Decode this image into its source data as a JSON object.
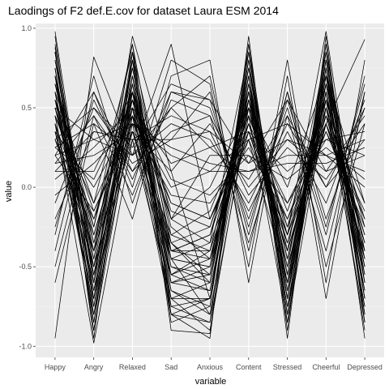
{
  "chart_data": {
    "type": "line",
    "title": "Laodings of F2 def.E.cov for dataset Laura ESM 2014",
    "xlabel": "variable",
    "ylabel": "value",
    "categories": [
      "Happy",
      "Angry",
      "Relaxed",
      "Sad",
      "Anxious",
      "Content",
      "Stressed",
      "Cheerful",
      "Depressed"
    ],
    "ylim": [
      -1.07,
      1.03
    ],
    "yticks": [
      -1.0,
      -0.5,
      0.0,
      0.5,
      1.0
    ],
    "ytick_labels": [
      "-1.0",
      "-0.5",
      "0.0",
      "0.5",
      "1.0"
    ],
    "grid": true,
    "legend": "none",
    "colors": {
      "panel_background": "#ebebeb",
      "grid_major": "#ffffff",
      "grid_minor": "#f5f5f5",
      "line": "#000000"
    },
    "series": [
      {
        "values": [
          0.88,
          -0.95,
          0.85,
          -0.9,
          -0.92,
          0.9,
          -0.95,
          0.95,
          -0.85
        ]
      },
      {
        "values": [
          -0.95,
          0.82,
          0.2,
          0.9,
          -0.2,
          0.3,
          -0.6,
          0.4,
          0.93
        ]
      },
      {
        "values": [
          0.98,
          -0.6,
          0.95,
          0.1,
          -0.7,
          0.6,
          -0.3,
          0.98,
          -0.6
        ]
      },
      {
        "values": [
          0.6,
          -0.85,
          0.6,
          -0.6,
          -0.5,
          0.7,
          -0.8,
          0.8,
          -0.7
        ]
      },
      {
        "values": [
          0.5,
          0.3,
          0.4,
          0.2,
          0.1,
          0.3,
          0.4,
          0.2,
          0.1
        ]
      },
      {
        "values": [
          0.4,
          -0.98,
          0.3,
          -0.7,
          -0.9,
          0.5,
          -0.6,
          0.6,
          -0.9
        ]
      },
      {
        "values": [
          0.7,
          -0.4,
          0.9,
          -0.8,
          -0.95,
          0.95,
          -0.9,
          0.9,
          -0.8
        ]
      },
      {
        "values": [
          0.2,
          0.6,
          0.1,
          0.5,
          0.7,
          -0.4,
          0.6,
          -0.5,
          0.4
        ]
      },
      {
        "values": [
          -0.6,
          0.4,
          -0.2,
          0.7,
          0.8,
          -0.6,
          0.7,
          -0.7,
          0.6
        ]
      },
      {
        "values": [
          0.3,
          -0.2,
          0.5,
          -0.4,
          -0.3,
          0.4,
          -0.3,
          0.5,
          -0.3
        ]
      },
      {
        "values": [
          0.85,
          -0.7,
          0.7,
          -0.5,
          -0.6,
          0.8,
          -0.7,
          0.7,
          -0.5
        ]
      },
      {
        "values": [
          0.1,
          0.1,
          0.6,
          -0.2,
          0.2,
          0.2,
          -0.1,
          0.3,
          0.2
        ]
      },
      {
        "values": [
          0.5,
          -0.5,
          0.8,
          -0.3,
          -0.4,
          0.6,
          -0.5,
          0.8,
          -0.4
        ]
      },
      {
        "values": [
          0.65,
          -0.3,
          0.55,
          -0.1,
          -0.2,
          0.4,
          -0.1,
          0.4,
          -0.2
        ]
      },
      {
        "values": [
          -0.3,
          0.7,
          -0.1,
          0.6,
          0.5,
          -0.2,
          0.5,
          -0.3,
          0.7
        ]
      },
      {
        "values": [
          0.75,
          -0.8,
          0.4,
          -0.8,
          -0.7,
          0.7,
          -0.8,
          0.6,
          -0.75
        ]
      },
      {
        "values": [
          0.35,
          0.0,
          0.45,
          0.0,
          0.1,
          0.1,
          0.2,
          0.2,
          0.0
        ]
      },
      {
        "values": [
          0.55,
          -0.65,
          0.65,
          -0.55,
          -0.65,
          0.55,
          -0.55,
          0.65,
          -0.55
        ]
      },
      {
        "values": [
          0.25,
          0.4,
          0.2,
          0.4,
          0.3,
          -0.1,
          0.4,
          0.0,
          0.3
        ]
      },
      {
        "values": [
          0.8,
          -0.45,
          0.75,
          -0.35,
          -0.55,
          0.75,
          -0.4,
          0.85,
          -0.45
        ]
      },
      {
        "values": [
          -0.1,
          0.5,
          0.15,
          0.3,
          0.6,
          -0.3,
          0.6,
          -0.2,
          0.5
        ]
      },
      {
        "values": [
          0.45,
          -0.75,
          0.5,
          -0.65,
          -0.8,
          0.65,
          -0.75,
          0.55,
          -0.85
        ]
      },
      {
        "values": [
          0.6,
          -0.1,
          0.85,
          -0.2,
          0.0,
          0.5,
          0.0,
          0.7,
          -0.1
        ]
      },
      {
        "values": [
          0.9,
          -0.55,
          0.6,
          -0.45,
          -0.35,
          0.85,
          -0.65,
          0.75,
          -0.6
        ]
      },
      {
        "values": [
          0.15,
          0.2,
          0.35,
          0.1,
          0.4,
          0.0,
          0.3,
          0.1,
          0.2
        ]
      },
      {
        "values": [
          0.7,
          -0.9,
          0.45,
          -0.75,
          -0.85,
          0.45,
          -0.85,
          0.5,
          -0.65
        ]
      },
      {
        "values": [
          -0.4,
          0.6,
          0.0,
          0.8,
          0.65,
          -0.5,
          0.8,
          -0.6,
          0.8
        ]
      },
      {
        "values": [
          0.55,
          -0.35,
          0.7,
          -0.25,
          -0.45,
          0.35,
          -0.35,
          0.45,
          -0.35
        ]
      },
      {
        "values": [
          0.4,
          -0.6,
          0.55,
          -0.5,
          -0.55,
          0.65,
          -0.45,
          0.6,
          -0.5
        ]
      },
      {
        "values": [
          0.3,
          0.5,
          0.25,
          0.65,
          0.55,
          0.15,
          0.55,
          0.1,
          0.45
        ]
      },
      {
        "values": [
          0.85,
          -0.85,
          0.8,
          -0.85,
          -0.75,
          0.8,
          -0.85,
          0.75,
          -0.95
        ]
      },
      {
        "values": [
          0.2,
          -0.15,
          0.4,
          -0.05,
          -0.1,
          0.25,
          -0.2,
          0.35,
          -0.15
        ]
      },
      {
        "values": [
          0.65,
          -0.25,
          0.9,
          -0.4,
          -0.3,
          0.55,
          -0.25,
          0.65,
          -0.25
        ]
      },
      {
        "values": [
          -0.2,
          0.35,
          0.3,
          0.45,
          0.35,
          -0.15,
          0.35,
          -0.1,
          0.55
        ]
      },
      {
        "values": [
          0.5,
          -0.4,
          0.65,
          -0.6,
          -0.65,
          0.6,
          -0.6,
          0.7,
          -0.7
        ]
      },
      {
        "values": [
          0.75,
          -0.65,
          0.35,
          -0.45,
          -0.5,
          0.5,
          -0.5,
          0.4,
          -0.4
        ]
      },
      {
        "values": [
          0.05,
          0.25,
          0.5,
          0.15,
          0.25,
          0.35,
          0.1,
          0.3,
          0.35
        ]
      },
      {
        "values": [
          0.45,
          -0.2,
          0.6,
          -0.15,
          -0.25,
          0.45,
          -0.15,
          0.55,
          -0.2
        ]
      },
      {
        "values": [
          0.35,
          -0.5,
          0.3,
          -0.55,
          -0.45,
          0.4,
          -0.4,
          0.45,
          -0.45
        ]
      },
      {
        "values": [
          0.95,
          -0.75,
          0.7,
          -0.65,
          -0.75,
          0.9,
          -0.7,
          0.9,
          -0.7
        ]
      },
      {
        "values": [
          -0.5,
          0.45,
          -0.05,
          0.55,
          0.45,
          -0.35,
          0.45,
          -0.4,
          0.6
        ]
      },
      {
        "values": [
          0.6,
          -0.55,
          0.45,
          -0.35,
          -0.6,
          0.7,
          -0.55,
          0.65,
          -0.6
        ]
      },
      {
        "values": [
          0.25,
          0.05,
          0.55,
          0.05,
          -0.05,
          0.2,
          0.05,
          0.25,
          0.05
        ]
      },
      {
        "values": [
          0.7,
          -0.35,
          0.55,
          -0.55,
          -0.4,
          0.6,
          -0.45,
          0.5,
          -0.35
        ]
      },
      {
        "values": [
          0.45,
          -0.8,
          0.65,
          -0.7,
          -0.7,
          0.75,
          -0.65,
          0.7,
          -0.8
        ]
      },
      {
        "values": [
          0.15,
          0.45,
          0.1,
          0.35,
          0.45,
          -0.05,
          0.25,
          0.05,
          0.4
        ]
      },
      {
        "values": [
          0.8,
          -0.6,
          0.85,
          -0.6,
          -0.55,
          0.65,
          -0.6,
          0.8,
          -0.55
        ]
      },
      {
        "values": [
          0.55,
          -0.15,
          0.35,
          -0.3,
          -0.15,
          0.45,
          -0.25,
          0.4,
          -0.3
        ]
      },
      {
        "values": [
          0.35,
          -0.7,
          0.45,
          -0.45,
          -0.8,
          0.55,
          -0.7,
          0.6,
          -0.75
        ]
      },
      {
        "values": [
          -0.05,
          0.15,
          0.4,
          0.25,
          0.15,
          0.1,
          0.15,
          0.15,
          0.25
        ]
      },
      {
        "values": [
          0.65,
          -0.45,
          0.75,
          -0.45,
          -0.5,
          0.75,
          -0.55,
          0.75,
          -0.5
        ]
      },
      {
        "values": [
          0.4,
          -0.3,
          0.5,
          -0.2,
          -0.35,
          0.3,
          -0.3,
          0.35,
          -0.25
        ]
      },
      {
        "values": [
          0.75,
          -0.9,
          0.6,
          -0.8,
          -0.85,
          0.85,
          -0.8,
          0.85,
          -0.85
        ]
      },
      {
        "values": [
          0.2,
          0.3,
          0.2,
          0.5,
          0.25,
          0.05,
          0.45,
          0.0,
          0.5
        ]
      },
      {
        "values": [
          0.5,
          -0.25,
          0.75,
          -0.35,
          -0.25,
          0.5,
          -0.35,
          0.55,
          -0.35
        ]
      },
      {
        "values": [
          0.85,
          -0.5,
          0.5,
          -0.7,
          -0.6,
          0.6,
          -0.75,
          0.65,
          -0.65
        ]
      },
      {
        "values": [
          0.3,
          -0.4,
          0.35,
          -0.4,
          -0.4,
          0.35,
          -0.4,
          0.4,
          -0.4
        ]
      },
      {
        "values": [
          0.6,
          -0.7,
          0.8,
          -0.75,
          -0.7,
          0.7,
          -0.7,
          0.75,
          -0.7
        ]
      },
      {
        "values": [
          -0.25,
          0.55,
          0.05,
          0.6,
          0.55,
          -0.25,
          0.55,
          -0.25,
          0.65
        ]
      },
      {
        "values": [
          0.45,
          -0.1,
          0.45,
          -0.1,
          -0.2,
          0.35,
          -0.2,
          0.45,
          -0.1
        ]
      },
      {
        "values": [
          0.7,
          -0.55,
          0.65,
          -0.4,
          -0.45,
          0.55,
          -0.45,
          0.6,
          -0.45
        ]
      },
      {
        "values": [
          0.1,
          0.35,
          0.3,
          0.3,
          0.35,
          0.15,
          0.3,
          0.2,
          0.3
        ]
      }
    ]
  }
}
